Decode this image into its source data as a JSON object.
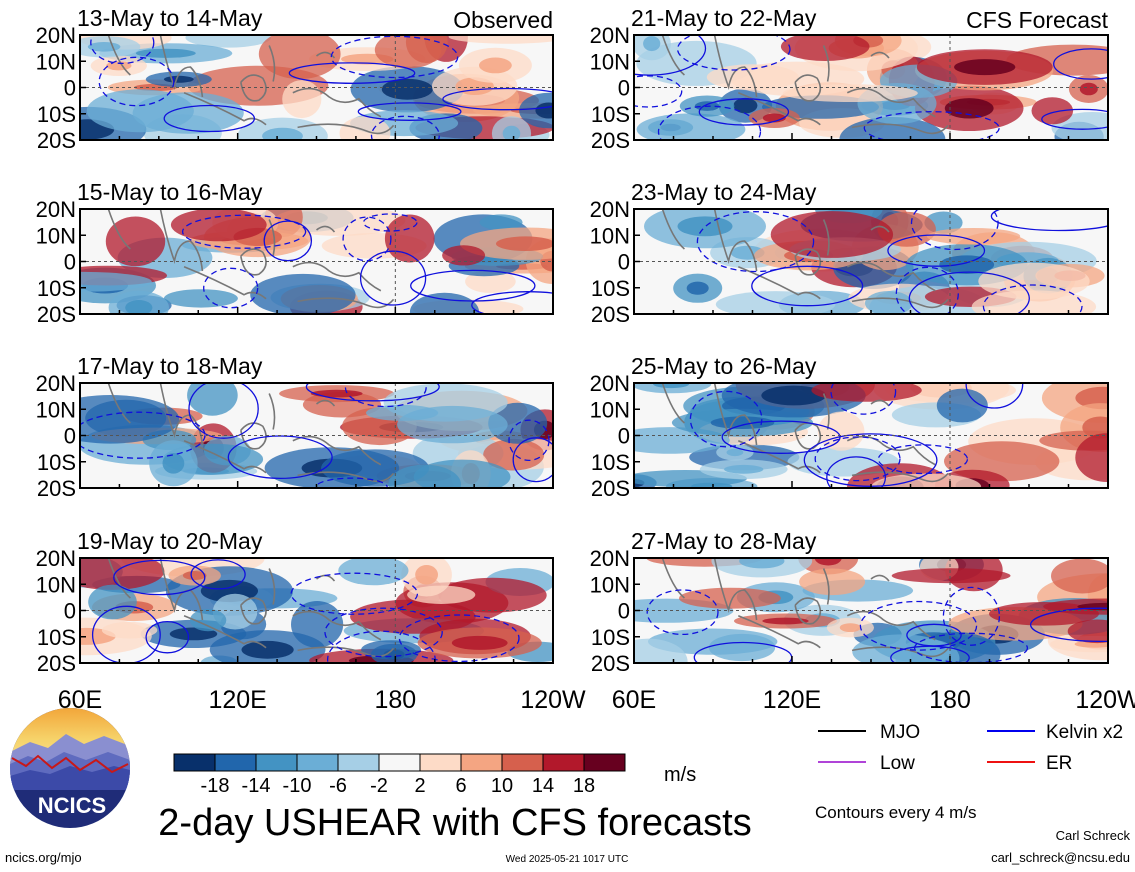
{
  "chart_data": {
    "type": "heatmap",
    "title": "2-day USHEAR with CFS forecasts",
    "variable": "USHEAR",
    "units": "m/s",
    "colorbar": {
      "tick_labels": [
        "-18",
        "-14",
        "-10",
        "-6",
        "-2",
        "2",
        "6",
        "10",
        "14",
        "18"
      ],
      "colors": [
        "#08306b",
        "#2166ac",
        "#4393c3",
        "#6baed6",
        "#a6cfe6",
        "#f7f7f7",
        "#fddbc7",
        "#f4a582",
        "#d6604d",
        "#b2182b",
        "#67001f"
      ]
    },
    "x_ticks": [
      "60E",
      "120E",
      "180",
      "120W"
    ],
    "y_ticks": [
      "20N",
      "10N",
      "0",
      "10S",
      "20S"
    ],
    "x_range_deg": [
      60,
      240
    ],
    "y_range_deg": [
      -20,
      20
    ],
    "legend": {
      "items": [
        {
          "label": "MJO",
          "color": "#000000"
        },
        {
          "label": "Kelvin x2",
          "color": "#0000ee"
        },
        {
          "label": "Low",
          "color": "#b044d8"
        },
        {
          "label": "ER",
          "color": "#ee1111"
        }
      ],
      "contour_note": "Contours every 4 m/s"
    },
    "panels": [
      {
        "label": "13-May to 14-May",
        "tag": "Observed",
        "source": "observed"
      },
      {
        "label": "15-May to 16-May",
        "tag": "",
        "source": "observed"
      },
      {
        "label": "17-May to 18-May",
        "tag": "",
        "source": "observed"
      },
      {
        "label": "19-May to 20-May",
        "tag": "",
        "source": "observed"
      },
      {
        "label": "21-May to 22-May",
        "tag": "CFS Forecast",
        "source": "forecast"
      },
      {
        "label": "23-May to 24-May",
        "tag": "",
        "source": "forecast"
      },
      {
        "label": "25-May to 26-May",
        "tag": "",
        "source": "forecast"
      },
      {
        "label": "27-May to 28-May",
        "tag": "",
        "source": "forecast"
      }
    ]
  },
  "branding": {
    "logo_text": "NCICS",
    "site": "ncics.org/mjo",
    "timestamp": "Wed 2025-05-21 1017 UTC",
    "author": "Carl Schreck",
    "email": "carl_schreck@ncsu.edu"
  }
}
